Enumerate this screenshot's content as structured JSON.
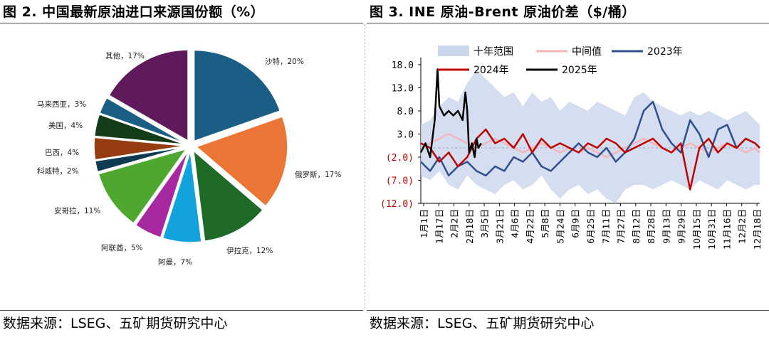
{
  "left": {
    "title": "图 2. 中国最新原油进口来源国份额（%）",
    "source": "数据来源：LSEG、五矿期货研究中心"
  },
  "right": {
    "title": "图 3.  INE 原油-Brent 原油价差（$/桶）",
    "source": "数据来源：LSEG、五矿期货研究中心"
  },
  "chart_data": [
    {
      "type": "pie",
      "title": "图 2. 中国最新原油进口来源国份额（%）",
      "unit": "%",
      "slices": [
        {
          "label": "沙特",
          "value": 20,
          "text": "沙特，20%",
          "color": "#1b5e85"
        },
        {
          "label": "俄罗斯",
          "value": 17,
          "text": "俄罗斯，17%",
          "color": "#ea7535"
        },
        {
          "label": "伊拉克",
          "value": 12,
          "text": "伊拉克，12%",
          "color": "#1e6a26"
        },
        {
          "label": "阿曼",
          "value": 7,
          "text": "阿曼，7%",
          "color": "#13a3dc"
        },
        {
          "label": "阿联酋",
          "value": 5,
          "text": "阿联酋，5%",
          "color": "#a8289f"
        },
        {
          "label": "安哥拉",
          "value": 11,
          "text": "安哥拉，11%",
          "color": "#4ea72e"
        },
        {
          "label": "科威特",
          "value": 2,
          "text": "科威特，2%",
          "color": "#0e3a52"
        },
        {
          "label": "巴西",
          "value": 4,
          "text": "巴西，4%",
          "color": "#953d10"
        },
        {
          "label": "美国",
          "value": 4,
          "text": "美国，4%",
          "color": "#133d19"
        },
        {
          "label": "马来西亚",
          "value": 3,
          "text": "马来西亚，3%",
          "color": "#1b5e85"
        },
        {
          "label": "其他",
          "value": 17,
          "text": "其他，17%",
          "color": "#5e1a5b"
        }
      ]
    },
    {
      "type": "line",
      "title": "图 3.  INE 原油-Brent 原油价差（$/桶）",
      "unit": "$/桶",
      "ylim": [
        -12,
        18
      ],
      "y_ticks": [
        {
          "value": 18,
          "label": "18.0"
        },
        {
          "value": 13,
          "label": "13.0"
        },
        {
          "value": 8,
          "label": "8.0"
        },
        {
          "value": 3,
          "label": "3.0"
        },
        {
          "value": -2,
          "label": "(2.0)"
        },
        {
          "value": -7,
          "label": "(7.0)"
        },
        {
          "value": -12,
          "label": "(12.0)"
        }
      ],
      "x_tick_labels": [
        "1月1日",
        "1月17日",
        "2月2日",
        "2月18日",
        "3月5日",
        "3月21日",
        "4月6日",
        "4月22日",
        "5月8日",
        "5月24日",
        "6月9日",
        "6月25日",
        "7月11日",
        "7月27日",
        "8月12日",
        "8月28日",
        "9月13日",
        "9月29日",
        "10月15日",
        "10月31日",
        "11月16日",
        "12月2日",
        "12月18日"
      ],
      "x_range_days": [
        0,
        365
      ],
      "legend": [
        {
          "name": "十年范围",
          "color": "#c9d6ec",
          "kind": "band"
        },
        {
          "name": "中间值",
          "color": "#f4b6bb",
          "kind": "line"
        },
        {
          "name": "2023年",
          "color": "#2f4f8f",
          "kind": "line"
        },
        {
          "name": "2024年",
          "color": "#c00000",
          "kind": "line"
        },
        {
          "name": "2025年",
          "color": "#000000",
          "kind": "line"
        }
      ],
      "series": [
        {
          "name": "十年范围",
          "kind": "band",
          "x": [
            0,
            10,
            20,
            30,
            40,
            50,
            60,
            70,
            80,
            90,
            100,
            110,
            120,
            130,
            140,
            150,
            160,
            170,
            180,
            190,
            200,
            210,
            220,
            230,
            240,
            250,
            260,
            270,
            280,
            290,
            300,
            310,
            320,
            330,
            340,
            350,
            360,
            365
          ],
          "low": [
            -6,
            -7,
            -5,
            -8,
            -9,
            -6,
            -8,
            -9,
            -10,
            -8,
            -7,
            -9,
            -8,
            -6,
            -9,
            -11,
            -9,
            -8,
            -10,
            -9,
            -11,
            -12,
            -9,
            -8,
            -8,
            -9,
            -8,
            -7,
            -8,
            -9,
            -7,
            -8,
            -9,
            -7,
            -8,
            -9,
            -8,
            -8
          ],
          "high": [
            5,
            6,
            9,
            11,
            10,
            14,
            17,
            15,
            13,
            11,
            12,
            9,
            12,
            10,
            11,
            8,
            10,
            9,
            8,
            10,
            9,
            8,
            7,
            11,
            12,
            10,
            9,
            8,
            7,
            8,
            7,
            8,
            7,
            6,
            7,
            8,
            6,
            5
          ]
        },
        {
          "name": "中间值",
          "x": [
            0,
            10,
            20,
            30,
            40,
            50,
            60,
            70,
            80,
            90,
            100,
            110,
            120,
            130,
            140,
            150,
            160,
            170,
            180,
            190,
            200,
            210,
            220,
            230,
            240,
            250,
            260,
            270,
            280,
            290,
            300,
            310,
            320,
            330,
            340,
            350,
            360,
            365
          ],
          "values": [
            0,
            1,
            2,
            3,
            2,
            1,
            0,
            1,
            2,
            1,
            0,
            -1,
            0,
            1,
            0,
            -1,
            0,
            -1,
            0,
            -1,
            -2,
            -1,
            0,
            1,
            2,
            1,
            0,
            -1,
            0,
            1,
            0,
            -1,
            0,
            1,
            0,
            -1,
            0,
            -1
          ]
        },
        {
          "name": "2023年",
          "x": [
            0,
            10,
            20,
            30,
            40,
            50,
            60,
            70,
            80,
            90,
            100,
            110,
            120,
            130,
            140,
            150,
            160,
            170,
            180,
            190,
            200,
            210,
            220,
            230,
            240,
            250,
            260,
            270,
            280,
            290,
            300,
            310,
            320,
            330,
            340,
            350,
            360,
            365
          ],
          "values": [
            -3,
            -5,
            -2,
            -6,
            -4,
            -3,
            -5,
            -6,
            -4,
            -5,
            -2,
            -3,
            -1,
            -4,
            -5,
            -3,
            -1,
            1,
            -1,
            -2,
            0,
            -3,
            -1,
            2,
            8,
            10,
            4,
            1,
            -1,
            6,
            3,
            -2,
            4,
            5,
            0,
            2,
            1,
            0
          ]
        },
        {
          "name": "2024年",
          "x": [
            0,
            10,
            20,
            30,
            40,
            50,
            60,
            70,
            80,
            90,
            100,
            110,
            120,
            130,
            140,
            150,
            160,
            170,
            180,
            190,
            200,
            210,
            220,
            230,
            240,
            250,
            260,
            270,
            280,
            290,
            300,
            310,
            320,
            330,
            340,
            350,
            360,
            365
          ],
          "values": [
            1,
            0,
            -3,
            -1,
            -4,
            -2,
            2,
            4,
            1,
            2,
            0,
            3,
            -1,
            2,
            0,
            1,
            0,
            -1,
            1,
            0,
            2,
            1,
            -1,
            0,
            1,
            2,
            0,
            -1,
            1,
            -9,
            0,
            2,
            -1,
            1,
            0,
            2,
            1,
            0
          ]
        },
        {
          "name": "2025年",
          "x": [
            0,
            5,
            10,
            15,
            18,
            20,
            25,
            30,
            35,
            40,
            45,
            48,
            50,
            52,
            55,
            58,
            60,
            62,
            65
          ],
          "values": [
            -1,
            1,
            -2,
            6,
            17,
            9,
            7,
            8,
            7,
            8,
            6,
            12,
            8,
            -1,
            1,
            -2,
            2,
            0,
            1
          ]
        }
      ]
    }
  ]
}
